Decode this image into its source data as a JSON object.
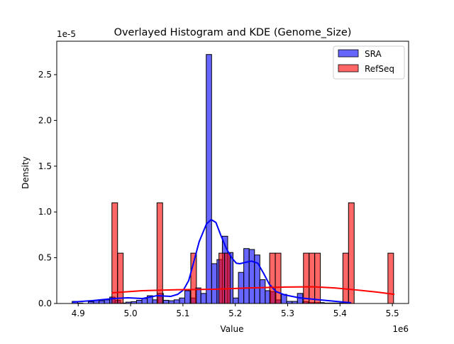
{
  "chart_data": {
    "type": "histogram+kde",
    "title": "Overlayed Histogram and KDE (Genome_Size)",
    "xlabel": "Value",
    "ylabel": "Density",
    "x_offset_label": "1e6",
    "y_offset_label": "1e-5",
    "xlim": [
      4.859,
      5.531
    ],
    "ylim": [
      0,
      2.865
    ],
    "x_ticks": [
      "4.9",
      "5.0",
      "5.1",
      "5.2",
      "5.3",
      "5.4",
      "5.5"
    ],
    "y_ticks": [
      "0.0",
      "0.5",
      "1.0",
      "1.5",
      "2.0",
      "2.5"
    ],
    "grid": false,
    "legend_position": "top-right",
    "series": [
      {
        "name": "SRA",
        "color": "#0000ff",
        "range": [
          4.8885,
          5.421
        ],
        "bins": 52,
        "values": [
          0.023,
          0.005,
          0,
          0.02,
          0.035,
          0.03,
          0.04,
          0.07,
          0.035,
          0.005,
          0.015,
          0.02,
          0.035,
          0.055,
          0.085,
          0.04,
          0.11,
          0.035,
          0.03,
          0.04,
          0.06,
          0.14,
          0.06,
          0.17,
          0.11,
          2.72,
          0.435,
          0.48,
          0.735,
          0.557,
          0.06,
          0.34,
          0.6,
          0.59,
          0.53,
          0.26,
          0.14,
          0.13,
          0.04,
          0.1,
          0.023,
          0.023,
          0.11,
          0.02,
          0.01,
          0.01,
          0.01,
          0.005,
          0.005,
          0.005,
          0.005,
          0.005
        ],
        "kde": {
          "x": [
            4.889,
            4.927,
            4.968,
            4.995,
            5.022,
            5.05,
            5.077,
            5.09,
            5.101,
            5.111,
            5.12,
            5.131,
            5.145,
            5.154,
            5.163,
            5.172,
            5.183,
            5.193,
            5.202,
            5.209,
            5.22,
            5.231,
            5.243,
            5.254,
            5.265,
            5.278,
            5.295,
            5.322,
            5.363,
            5.421
          ],
          "y": [
            0.016,
            0.031,
            0.054,
            0.062,
            0.054,
            0.085,
            0.078,
            0.1,
            0.148,
            0.25,
            0.44,
            0.675,
            0.87,
            0.916,
            0.885,
            0.75,
            0.6,
            0.5,
            0.44,
            0.435,
            0.45,
            0.463,
            0.44,
            0.33,
            0.21,
            0.13,
            0.093,
            0.062,
            0.039,
            0.008
          ]
        }
      },
      {
        "name": "RefSeq",
        "color": "#ff0000",
        "range": [
          4.9644,
          5.5023
        ],
        "bins": 50,
        "values": [
          1.1,
          0.55,
          0,
          0,
          0,
          0,
          0,
          0,
          1.1,
          0,
          0,
          0,
          0,
          0,
          0.55,
          0,
          0,
          0,
          0,
          0.55,
          0.55,
          0,
          0,
          0,
          0,
          0,
          0,
          0,
          0.55,
          0.55,
          0,
          0,
          0,
          0,
          0.55,
          0.55,
          0.55,
          0,
          0,
          0,
          0,
          0.55,
          1.1,
          0,
          0,
          0,
          0,
          0,
          0,
          0.55
        ],
        "kde": {
          "x": [
            4.964,
            5.022,
            5.09,
            5.158,
            5.227,
            5.295,
            5.349,
            5.39,
            5.431,
            5.471,
            5.504
          ],
          "y": [
            0.116,
            0.14,
            0.15,
            0.155,
            0.17,
            0.18,
            0.182,
            0.17,
            0.148,
            0.124,
            0.1
          ]
        }
      }
    ]
  }
}
